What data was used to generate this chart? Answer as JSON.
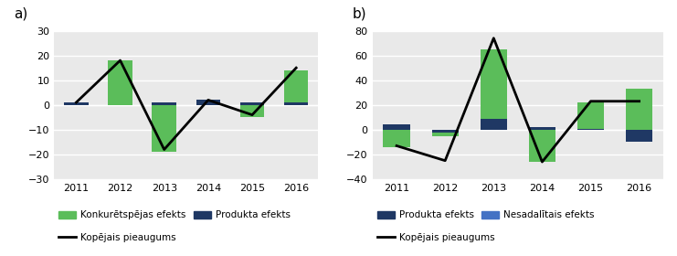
{
  "a_years": [
    2011,
    2012,
    2013,
    2014,
    2015,
    2016
  ],
  "a_konkuretspeja": [
    0,
    18,
    -19,
    0,
    -5,
    14
  ],
  "a_produkta": [
    1,
    0,
    1,
    2,
    1,
    1
  ],
  "a_kopejais": [
    1,
    18,
    -18,
    2,
    -4,
    15
  ],
  "a_ylim": [
    -30,
    30
  ],
  "a_yticks": [
    -30,
    -20,
    -10,
    0,
    10,
    20,
    30
  ],
  "b_years": [
    2011,
    2012,
    2013,
    2014,
    2015,
    2016
  ],
  "b_green": [
    -14,
    -5,
    65,
    -26,
    22,
    33
  ],
  "b_produkta": [
    4,
    -2,
    9,
    2,
    1,
    -10
  ],
  "b_kopejais": [
    -13,
    -25,
    74,
    -26,
    23,
    23
  ],
  "b_ylim": [
    -40,
    80
  ],
  "b_yticks": [
    -40,
    -20,
    0,
    20,
    40,
    60,
    80
  ],
  "color_green": "#5BBD5A",
  "color_dark_blue": "#1F3864",
  "color_steel_blue": "#4472C4",
  "color_line": "#000000",
  "bar_width": 0.55,
  "legend_a_1": "Konkurētspējas efekts",
  "legend_a_2": "Produkta efekts",
  "legend_a_3": "Kopējais pieaugums",
  "legend_b_1": "Produkta efekts",
  "legend_b_2": "Nesadalītais efekts",
  "legend_b_3": "Kopējais pieaugums",
  "label_a": "a)",
  "label_b": "b)",
  "bg_color": "#E9E9E9"
}
